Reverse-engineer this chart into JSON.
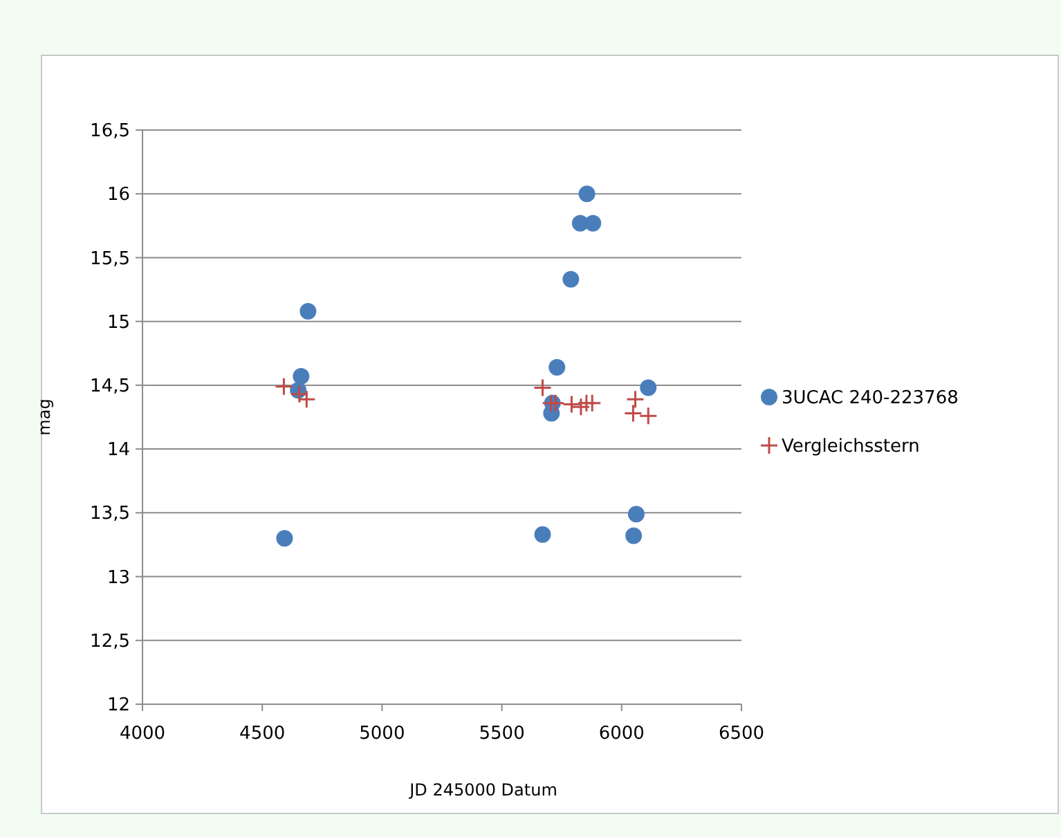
{
  "chart_data": {
    "type": "scatter",
    "xlabel": "JD 245000   Datum",
    "ylabel": "mag",
    "xlim": [
      4000,
      6500
    ],
    "xticks": [
      4000,
      4500,
      5000,
      5500,
      6000,
      6500
    ],
    "ylim": [
      12,
      16.5
    ],
    "yticks": [
      {
        "value": 12,
        "label": "12"
      },
      {
        "value": 12.5,
        "label": "12,5"
      },
      {
        "value": 13,
        "label": "13"
      },
      {
        "value": 13.5,
        "label": "13,5"
      },
      {
        "value": 14,
        "label": "14"
      },
      {
        "value": 14.5,
        "label": "14,5"
      },
      {
        "value": 15,
        "label": "15"
      },
      {
        "value": 15.5,
        "label": "15,5"
      },
      {
        "value": 16,
        "label": "16"
      },
      {
        "value": 16.5,
        "label": "16,5"
      }
    ],
    "grid": "y",
    "legend": "right",
    "series": [
      {
        "name": "3UCAC 240-223768",
        "color": "#4a7ebb",
        "marker": "circle",
        "x": [
          4593,
          4650,
          4662,
          4691,
          5670,
          5707,
          5711,
          5730,
          5788,
          5827,
          5855,
          5880,
          6050,
          6061,
          6111
        ],
        "values": [
          13.3,
          14.46,
          14.57,
          15.08,
          13.33,
          14.28,
          14.36,
          14.64,
          15.33,
          15.77,
          16.0,
          15.77,
          13.32,
          13.49,
          14.48
        ]
      },
      {
        "name": "Vergleichsstern",
        "color": "#be4b48",
        "marker": "cross",
        "x": [
          4590,
          4655,
          4685,
          5670,
          5705,
          5724,
          5791,
          5830,
          5853,
          5877,
          6048,
          6057,
          6111
        ],
        "values": [
          14.49,
          14.43,
          14.39,
          14.48,
          14.36,
          14.36,
          14.35,
          14.33,
          14.36,
          14.36,
          14.28,
          14.39,
          14.26
        ]
      }
    ]
  }
}
